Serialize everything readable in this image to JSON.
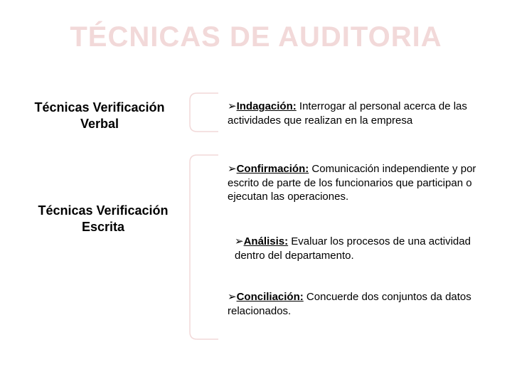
{
  "title": "TÉCNICAS  DE AUDITORIA",
  "sections": {
    "verbal": {
      "label": "Técnicas Verificación\nVerbal"
    },
    "escrita": {
      "label": "Técnicas Verificación\nEscrita"
    }
  },
  "items": {
    "indagacion": {
      "arrow": "➢",
      "term": "Indagación:",
      "desc": " Interrogar al personal acerca de las actividades que realizan en la empresa"
    },
    "confirmacion": {
      "arrow": "➢",
      "term": "Confirmación:",
      "desc": " Comunicación independiente y por escrito de parte de los funcionarios que participan o ejecutan las operaciones."
    },
    "analisis": {
      "arrow": "➢",
      "term": "Análisis:",
      "desc": " Evaluar los procesos de una actividad  dentro del departamento."
    },
    "conciliacion": {
      "arrow": "➢",
      "term": "Conciliación:",
      "desc": "  Concuerde dos conjuntos da datos relacionados."
    }
  },
  "colors": {
    "title_color": "#f2d9d9",
    "bracket_color": "#f2d9d9",
    "text_color": "#000000",
    "background": "#ffffff"
  }
}
